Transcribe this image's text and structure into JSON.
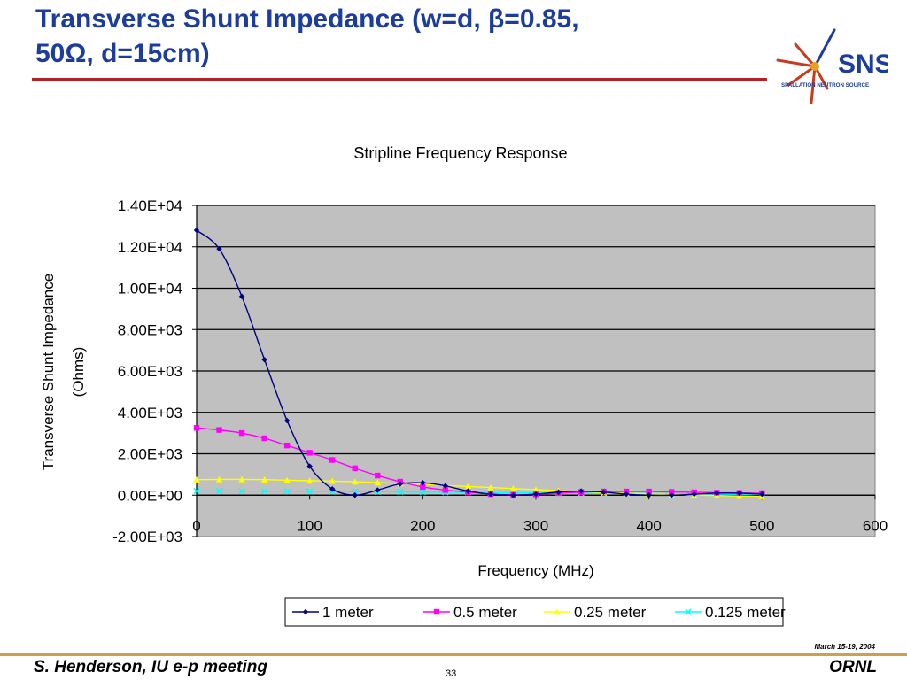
{
  "slide": {
    "title_line1": "Transverse Shunt Impedance (w=d, β=0.85,",
    "title_line2": "50Ω, d=15cm)",
    "logo_text": "SNS",
    "logo_subtext": "SPALLATION NEUTRON SOURCE",
    "footer_left": "S. Henderson, IU e-p meeting",
    "footer_right": "ORNL",
    "footer_date": "March 15-19, 2004",
    "page_number": "33"
  },
  "colors": {
    "title": "#1c3d9e",
    "plot_bg": "#c0c0c0",
    "series": [
      "#000080",
      "#ff00ff",
      "#ffff00",
      "#00ffff"
    ]
  },
  "chart_data": {
    "type": "line",
    "title": "Stripline Frequency Response",
    "xlabel": "Frequency (MHz)",
    "ylabel_line1": "Transverse Shunt Impedance",
    "ylabel_line2": "(Ohms)",
    "xlim": [
      0,
      600
    ],
    "ylim": [
      -2000,
      14000
    ],
    "x_ticks": [
      0,
      100,
      200,
      300,
      400,
      500,
      600
    ],
    "x_tick_labels": [
      "0",
      "100",
      "200",
      "300",
      "400",
      "500",
      "600"
    ],
    "y_ticks": [
      -2000,
      0,
      2000,
      4000,
      6000,
      8000,
      10000,
      12000,
      14000
    ],
    "y_tick_labels": [
      "-2.00E+03",
      "0.00E+00",
      "2.00E+03",
      "4.00E+03",
      "6.00E+03",
      "8.00E+03",
      "1.00E+04",
      "1.20E+04",
      "1.40E+04"
    ],
    "grid": "horizontal",
    "legend_position": "bottom",
    "x": [
      0,
      20,
      40,
      60,
      80,
      100,
      120,
      140,
      160,
      180,
      200,
      220,
      240,
      260,
      280,
      300,
      320,
      340,
      360,
      380,
      400,
      420,
      440,
      460,
      480,
      500
    ],
    "series": [
      {
        "name": "1 meter",
        "marker": "diamond",
        "values": [
          12800,
          11900,
          9600,
          6550,
          3600,
          1400,
          300,
          0,
          250,
          550,
          600,
          450,
          200,
          50,
          0,
          50,
          150,
          200,
          150,
          50,
          0,
          0,
          50,
          100,
          100,
          50
        ]
      },
      {
        "name": "0.5 meter",
        "marker": "square",
        "values": [
          3250,
          3150,
          3000,
          2750,
          2400,
          2050,
          1700,
          1300,
          950,
          650,
          400,
          250,
          150,
          50,
          20,
          40,
          100,
          150,
          180,
          180,
          180,
          160,
          140,
          120,
          110,
          100
        ]
      },
      {
        "name": "0.25 meter",
        "marker": "triangle",
        "values": [
          750,
          760,
          760,
          750,
          720,
          700,
          680,
          650,
          610,
          570,
          520,
          470,
          420,
          370,
          320,
          270,
          220,
          170,
          130,
          90,
          60,
          30,
          10,
          -20,
          -40,
          -60
        ]
      },
      {
        "name": "0.125 meter",
        "marker": "x",
        "values": [
          200,
          200,
          195,
          190,
          185,
          180,
          175,
          170,
          165,
          158,
          152,
          145,
          138,
          130,
          122,
          115,
          108,
          100,
          92,
          84,
          76,
          68,
          60,
          52,
          46,
          40
        ]
      }
    ]
  }
}
